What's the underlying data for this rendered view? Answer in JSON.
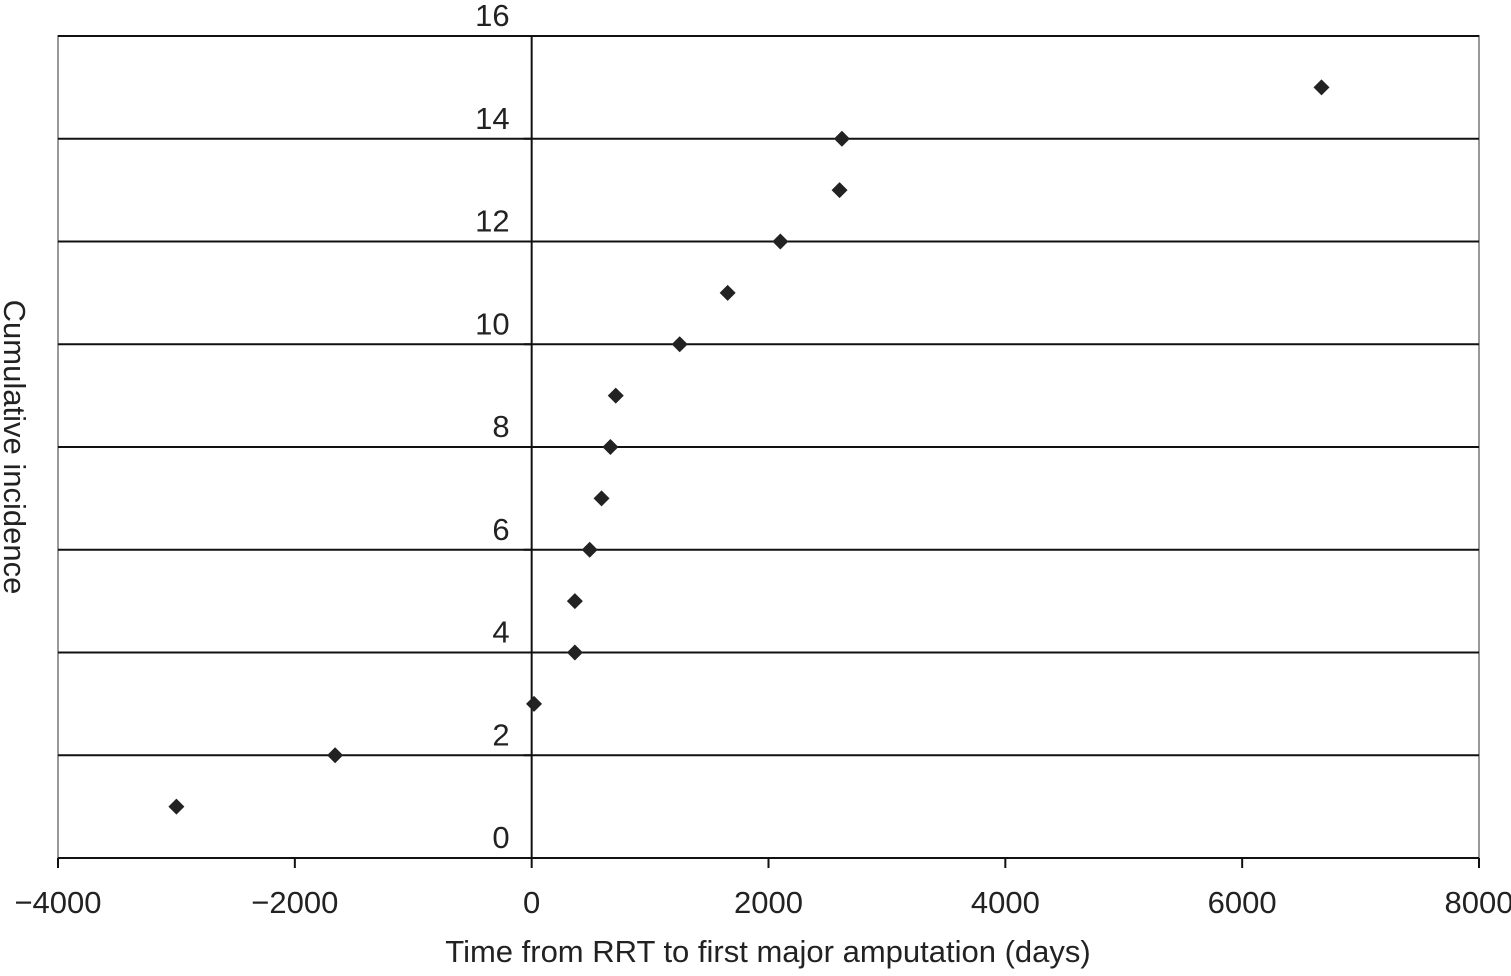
{
  "chart_data": {
    "type": "scatter",
    "x_label": "Time from RRT to first major amputation (days)",
    "y_label": "Cumulative incidence",
    "series": [
      {
        "color": "#222222",
        "x": [
          -3000,
          -1660,
          20,
          365,
          365,
          490,
          590,
          665,
          710,
          1250,
          1655,
          2100,
          2600,
          2620,
          6670
        ],
        "values": [
          1,
          2,
          3,
          4,
          5,
          6,
          7,
          8,
          9,
          10,
          11,
          12,
          13,
          14,
          15
        ]
      }
    ],
    "xlim": [
      -4000,
      8000
    ],
    "xticks": [
      {
        "value": -4000,
        "label": "−4000"
      },
      {
        "value": -2000,
        "label": "−2000"
      },
      0,
      2000,
      4000,
      6000,
      8000
    ],
    "ylim": [
      0,
      16
    ],
    "yticks": [
      0,
      2,
      4,
      6,
      8,
      10,
      12,
      14,
      16
    ],
    "grid": true
  }
}
